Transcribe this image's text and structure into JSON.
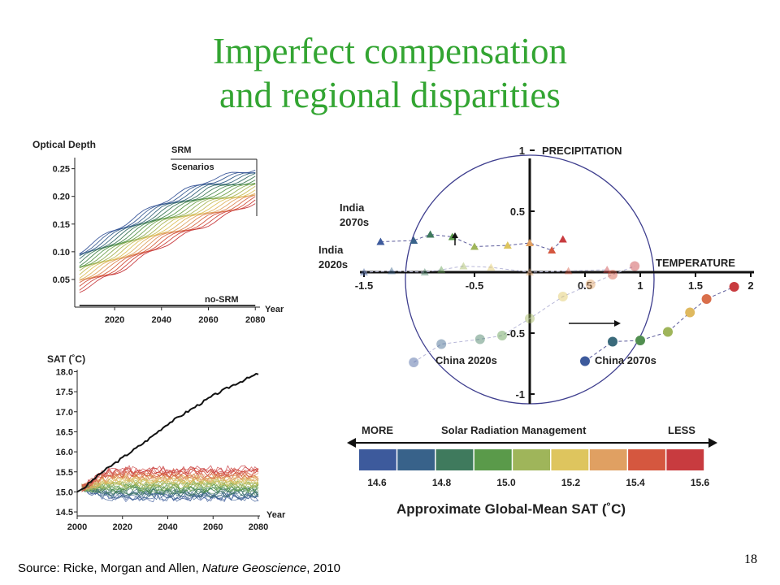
{
  "slide": {
    "title_line1": "Imperfect compensation",
    "title_line2": "and regional disparities",
    "source_prefix": "Source: Ricke, Morgan and Allen, ",
    "source_journal": "Nature Geoscience",
    "source_suffix": ", 2010",
    "page_number": "18",
    "title_color": "#33a532"
  },
  "chart_data": [
    {
      "id": "optical-depth",
      "type": "line",
      "title": "Optical Depth",
      "xlabel": "Year",
      "ylabel": "",
      "xlim": [
        2003,
        2082
      ],
      "ylim": [
        0.0,
        0.27
      ],
      "x_ticks": [
        "2020",
        "2040",
        "2060",
        "2080"
      ],
      "y_ticks": [
        "0.25",
        "0.20",
        "0.15",
        "0.10",
        "0.05"
      ],
      "annotations": [
        "SRM",
        "Scenarios",
        "no-SRM"
      ],
      "series_count": 20,
      "lowest_series": {
        "x": [
          2005,
          2020,
          2040,
          2060,
          2080
        ],
        "values": [
          0.03,
          0.06,
          0.11,
          0.15,
          0.19
        ]
      },
      "highest_series": {
        "x": [
          2005,
          2020,
          2040,
          2060,
          2080
        ],
        "values": [
          0.1,
          0.14,
          0.19,
          0.23,
          0.25
        ]
      },
      "no_srm_value": 0.0
    },
    {
      "id": "sat",
      "type": "line",
      "title": "SAT (˚C)",
      "xlabel": "Year",
      "ylabel": "",
      "xlim": [
        2000,
        2080
      ],
      "ylim": [
        14.4,
        18.05
      ],
      "x_ticks": [
        "2000",
        "2020",
        "2040",
        "2060",
        "2080"
      ],
      "y_ticks": [
        "18.0",
        "17.5",
        "17.0",
        "16.5",
        "16.0",
        "15.5",
        "15.0",
        "14.5"
      ],
      "no_srm_series": {
        "x": [
          2000,
          2003,
          2010,
          2020,
          2030,
          2040,
          2050,
          2060,
          2070,
          2080
        ],
        "values": [
          15.0,
          15.1,
          15.45,
          15.85,
          16.25,
          16.7,
          17.05,
          17.4,
          17.7,
          17.95
        ]
      },
      "srm_ensemble_range": [
        14.7,
        15.65
      ],
      "srm_series_count": 40
    },
    {
      "id": "regional",
      "type": "scatter",
      "xlabel": "TEMPERATURE",
      "ylabel": "PRECIPITATION",
      "xlim": [
        -1.5,
        2.0
      ],
      "ylim": [
        -1,
        1
      ],
      "x_ticks": [
        "-1.5",
        "-0.5",
        "0.5",
        "1",
        "1.5",
        "2"
      ],
      "y_ticks": [
        "1",
        "0.5",
        "-0.5",
        "-1"
      ],
      "unit_circle": true,
      "series": [
        {
          "name": "India 2020s",
          "marker": "triangle",
          "x": [
            -1.5,
            -1.25,
            -0.95,
            -0.8,
            -0.6,
            -0.35,
            0.0,
            0.35,
            0.7
          ],
          "y": [
            0.0,
            0.01,
            0.0,
            0.02,
            0.05,
            0.04,
            0.0,
            0.01,
            0.02
          ],
          "opacity": 0.45
        },
        {
          "name": "India 2070s",
          "marker": "triangle",
          "x": [
            -1.35,
            -1.05,
            -0.9,
            -0.7,
            -0.5,
            -0.2,
            0.0,
            0.2,
            0.3
          ],
          "y": [
            0.25,
            0.26,
            0.31,
            0.29,
            0.21,
            0.22,
            0.24,
            0.18,
            0.27
          ],
          "opacity": 1.0
        },
        {
          "name": "China 2020s",
          "marker": "circle",
          "x": [
            -1.05,
            -0.8,
            -0.45,
            -0.25,
            0.0,
            0.3,
            0.55,
            0.75,
            0.95
          ],
          "y": [
            -0.74,
            -0.59,
            -0.55,
            -0.52,
            -0.38,
            -0.2,
            -0.1,
            -0.02,
            0.05
          ],
          "opacity": 0.45
        },
        {
          "name": "China 2070s",
          "marker": "circle",
          "x": [
            0.5,
            0.75,
            1.0,
            1.25,
            1.45,
            1.6,
            1.85
          ],
          "y": [
            -0.73,
            -0.57,
            -0.56,
            -0.49,
            -0.33,
            -0.22,
            -0.12
          ],
          "opacity": 1.0
        }
      ],
      "arrows": [
        "India 2020s to India 2070s (up)",
        "China 2020s to China 2070s (right)"
      ]
    },
    {
      "id": "colorbar",
      "type": "heatmap",
      "title": "Solar Radiation Management",
      "left_label": "MORE",
      "right_label": "LESS",
      "xlabel": "Approximate Global-Mean SAT (˚C)",
      "tick_labels": [
        "14.6",
        "14.8",
        "15.0",
        "15.2",
        "15.4",
        "15.6"
      ],
      "colors": [
        "#3d5a9c",
        "#38628a",
        "#3f7a5d",
        "#5a9a4a",
        "#9fb55a",
        "#dec55e",
        "#e0a062",
        "#d5573f",
        "#c83b3f"
      ]
    }
  ]
}
